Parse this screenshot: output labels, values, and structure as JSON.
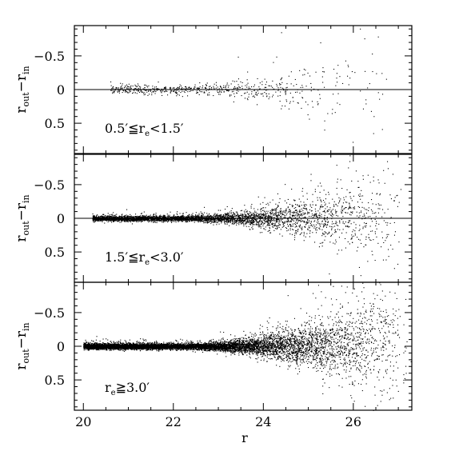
{
  "chart_data": {
    "type": "scatter",
    "xlabel": "r",
    "xlim": [
      19.8,
      27.3
    ],
    "x_ticks": [
      20,
      22,
      24,
      26
    ],
    "x_tick_labels": [
      "20",
      "22",
      "24",
      "26"
    ],
    "shared_x_axis": true,
    "y_inverted": true,
    "points_description_note": "",
    "panels": [
      {
        "ylabel": "r_out − r_in",
        "ylabel_main": "r",
        "ylabel_sub_out": "out",
        "ylabel_sub_in": "in",
        "ylim": [
          0.95,
          -0.95
        ],
        "y_ticks": [
          -0.5,
          0,
          0.5
        ],
        "y_tick_labels": [
          "−0.5",
          "0",
          "0.5"
        ],
        "annotation": "0.5′≦r_e<1.5′",
        "annotation_parts": [
          "0.5′≦r",
          "e",
          "<1.5′"
        ],
        "zero_line": true,
        "n_points": 650,
        "scatter_profile": {
          "r_min": 20.6,
          "r_max": 27.0,
          "sigma_at_22": 0.03,
          "sigma_at_26": 0.35
        }
      },
      {
        "ylabel": "r_out − r_in",
        "ylabel_main": "r",
        "ylabel_sub_out": "out",
        "ylabel_sub_in": "in",
        "ylim": [
          0.95,
          -0.95
        ],
        "y_ticks": [
          -0.5,
          0,
          0.5
        ],
        "y_tick_labels": [
          "−0.5",
          "0",
          "0.5"
        ],
        "annotation": "1.5′≦r_e<3.0′",
        "annotation_parts": [
          "1.5′≦r",
          "e",
          "<3.0′"
        ],
        "zero_line": true,
        "n_points": 4200,
        "scatter_profile": {
          "r_min": 20.2,
          "r_max": 27.2,
          "sigma_at_22": 0.02,
          "sigma_at_26": 0.28
        }
      },
      {
        "ylabel": "r_out − r_in",
        "ylabel_main": "r",
        "ylabel_sub_out": "out",
        "ylabel_sub_in": "in",
        "ylim": [
          0.95,
          -0.95
        ],
        "y_ticks": [
          -0.5,
          0,
          0.5
        ],
        "y_tick_labels": [
          "−0.5",
          "0",
          "0.5"
        ],
        "annotation": "r_e≧3.0′",
        "annotation_parts": [
          "r",
          "e",
          "≧3.0′"
        ],
        "zero_line": false,
        "n_points": 9000,
        "scatter_profile": {
          "r_min": 20.0,
          "r_max": 27.3,
          "sigma_at_22": 0.02,
          "sigma_at_26": 0.3
        }
      }
    ]
  }
}
